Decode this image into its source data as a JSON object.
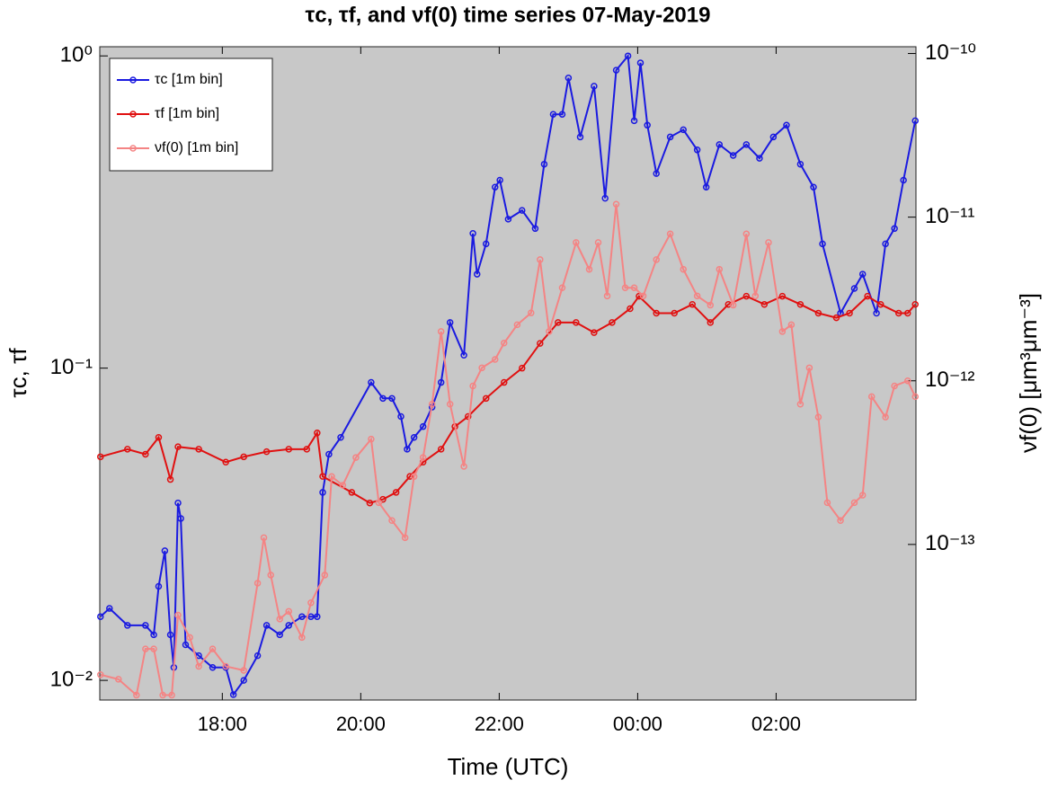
{
  "chart_data": {
    "type": "line",
    "title": "τc, τf, and νf(0) time series 07-May-2019",
    "x_label": "Time (UTC)",
    "y_label": "τc, τf",
    "y2_label": "νf(0) [μm³μm⁻³]",
    "xlim": [
      16.23,
      28.02
    ],
    "xticks": [
      {
        "value": 18,
        "label": "18:00"
      },
      {
        "value": 20,
        "label": "20:00"
      },
      {
        "value": 22,
        "label": "22:00"
      },
      {
        "value": 24,
        "label": "00:00"
      },
      {
        "value": 26,
        "label": "02:00"
      }
    ],
    "ylim": [
      0.00865,
      1.07
    ],
    "y_scale": "log",
    "yticks": [
      {
        "value": 0.01,
        "label": "10⁻²"
      },
      {
        "value": 0.1,
        "label": "10⁻¹"
      },
      {
        "value": 1,
        "label": "10⁰"
      }
    ],
    "y2lim": [
      1.12e-14,
      1.1e-10
    ],
    "y2_scale": "log",
    "y2ticks": [
      {
        "value": 1e-13,
        "label": "10⁻¹³"
      },
      {
        "value": 1e-12,
        "label": "10⁻¹²"
      },
      {
        "value": 1e-11,
        "label": "10⁻¹¹"
      },
      {
        "value": 1e-10,
        "label": "10⁻¹⁰"
      }
    ],
    "legend": "northwest",
    "background": "#c8c8c8",
    "series": [
      {
        "name": "τc [1m bin]",
        "color": "#1a1ae0",
        "x": [
          16.24,
          16.37,
          16.63,
          16.89,
          17.01,
          17.08,
          17.17,
          17.25,
          17.3,
          17.36,
          17.4,
          17.47,
          17.66,
          17.86,
          18.05,
          18.16,
          18.31,
          18.51,
          18.64,
          18.83,
          18.96,
          19.15,
          19.28,
          19.37,
          19.45,
          19.54,
          19.71,
          20.15,
          20.32,
          20.45,
          20.58,
          20.67,
          20.77,
          20.9,
          21.03,
          21.16,
          21.29,
          21.49,
          21.62,
          21.68,
          21.81,
          21.94,
          22.01,
          22.13,
          22.33,
          22.52,
          22.65,
          22.78,
          22.91,
          23.0,
          23.17,
          23.37,
          23.53,
          23.69,
          23.86,
          23.95,
          24.04,
          24.14,
          24.27,
          24.47,
          24.66,
          24.86,
          24.99,
          25.18,
          25.38,
          25.57,
          25.76,
          25.96,
          26.15,
          26.35,
          26.54,
          26.67,
          26.93,
          27.13,
          27.25,
          27.45,
          27.58,
          27.71,
          27.84,
          28.01
        ],
        "values": [
          0.016,
          0.017,
          0.015,
          0.015,
          0.014,
          0.02,
          0.026,
          0.014,
          0.011,
          0.037,
          0.033,
          0.013,
          0.012,
          0.011,
          0.011,
          0.009,
          0.01,
          0.012,
          0.015,
          0.014,
          0.015,
          0.016,
          0.016,
          0.016,
          0.04,
          0.053,
          0.06,
          0.09,
          0.08,
          0.08,
          0.07,
          0.055,
          0.06,
          0.065,
          0.075,
          0.09,
          0.14,
          0.11,
          0.27,
          0.2,
          0.25,
          0.38,
          0.4,
          0.3,
          0.32,
          0.28,
          0.45,
          0.65,
          0.65,
          0.85,
          0.55,
          0.8,
          0.35,
          0.9,
          1.0,
          0.62,
          0.95,
          0.6,
          0.42,
          0.55,
          0.58,
          0.5,
          0.38,
          0.52,
          0.48,
          0.52,
          0.47,
          0.55,
          0.6,
          0.45,
          0.38,
          0.25,
          0.15,
          0.18,
          0.2,
          0.15,
          0.25,
          0.28,
          0.4,
          0.62
        ]
      },
      {
        "name": "τf [1m bin]",
        "color": "#e01010",
        "x": [
          16.24,
          16.63,
          16.89,
          17.08,
          17.25,
          17.36,
          17.66,
          18.05,
          18.31,
          18.64,
          18.96,
          19.22,
          19.37,
          19.45,
          19.87,
          20.13,
          20.32,
          20.51,
          20.71,
          20.9,
          21.16,
          21.36,
          21.55,
          21.81,
          22.07,
          22.33,
          22.59,
          22.85,
          23.11,
          23.37,
          23.63,
          23.89,
          24.02,
          24.27,
          24.53,
          24.79,
          25.05,
          25.31,
          25.57,
          25.83,
          26.09,
          26.35,
          26.61,
          26.87,
          27.06,
          27.32,
          27.51,
          27.77,
          27.9,
          28.01
        ],
        "values": [
          0.052,
          0.055,
          0.053,
          0.06,
          0.044,
          0.056,
          0.055,
          0.05,
          0.052,
          0.054,
          0.055,
          0.055,
          0.062,
          0.045,
          0.04,
          0.037,
          0.038,
          0.04,
          0.045,
          0.05,
          0.055,
          0.065,
          0.07,
          0.08,
          0.09,
          0.1,
          0.12,
          0.14,
          0.14,
          0.13,
          0.14,
          0.155,
          0.17,
          0.15,
          0.15,
          0.16,
          0.14,
          0.16,
          0.17,
          0.16,
          0.17,
          0.16,
          0.15,
          0.145,
          0.15,
          0.17,
          0.16,
          0.15,
          0.15,
          0.16
        ]
      },
      {
        "name": "νf(0) [1m bin]",
        "color": "#f48484",
        "axis": "y2",
        "x": [
          16.24,
          16.5,
          16.76,
          16.89,
          17.01,
          17.14,
          17.27,
          17.36,
          17.53,
          17.66,
          17.86,
          18.05,
          18.31,
          18.51,
          18.6,
          18.7,
          18.83,
          18.96,
          19.15,
          19.28,
          19.48,
          19.58,
          19.74,
          19.93,
          20.15,
          20.26,
          20.45,
          20.64,
          20.77,
          20.9,
          21.03,
          21.16,
          21.29,
          21.49,
          21.62,
          21.75,
          21.94,
          22.07,
          22.26,
          22.46,
          22.59,
          22.72,
          22.91,
          23.11,
          23.3,
          23.43,
          23.56,
          23.69,
          23.82,
          23.95,
          24.08,
          24.27,
          24.47,
          24.66,
          24.86,
          25.05,
          25.18,
          25.38,
          25.57,
          25.7,
          25.89,
          26.09,
          26.22,
          26.35,
          26.48,
          26.61,
          26.74,
          26.93,
          27.13,
          27.25,
          27.38,
          27.58,
          27.71,
          27.9,
          28.01
        ],
        "values": [
          1.6e-14,
          1.5e-14,
          1.2e-14,
          2.3e-14,
          2.3e-14,
          1.2e-14,
          1.2e-14,
          3.7e-14,
          2.7e-14,
          1.8e-14,
          2.3e-14,
          1.8e-14,
          1.7e-14,
          5.8e-14,
          1.1e-13,
          6.5e-14,
          3.5e-14,
          3.9e-14,
          2.7e-14,
          4.4e-14,
          6.5e-14,
          2.6e-13,
          2.3e-13,
          3.4e-13,
          4.4e-13,
          1.8e-13,
          1.4e-13,
          1.1e-13,
          2.6e-13,
          3.4e-13,
          7.2e-13,
          2e-12,
          7.2e-13,
          3e-13,
          9.3e-13,
          1.2e-12,
          1.35e-12,
          1.7e-12,
          2.2e-12,
          2.6e-12,
          5.5e-12,
          2e-12,
          3.7e-12,
          7e-12,
          4.8e-12,
          7e-12,
          3.3e-12,
          1.2e-11,
          3.7e-12,
          3.7e-12,
          3.3e-12,
          5.5e-12,
          7.9e-12,
          4.8e-12,
          3.3e-12,
          2.9e-12,
          4.8e-12,
          2.9e-12,
          7.9e-12,
          3.3e-12,
          7e-12,
          2e-12,
          2.2e-12,
          7.2e-13,
          1.2e-12,
          6e-13,
          1.8e-13,
          1.4e-13,
          1.8e-13,
          2e-13,
          8e-13,
          6e-13,
          9.3e-13,
          1e-12,
          8e-13
        ]
      }
    ]
  }
}
